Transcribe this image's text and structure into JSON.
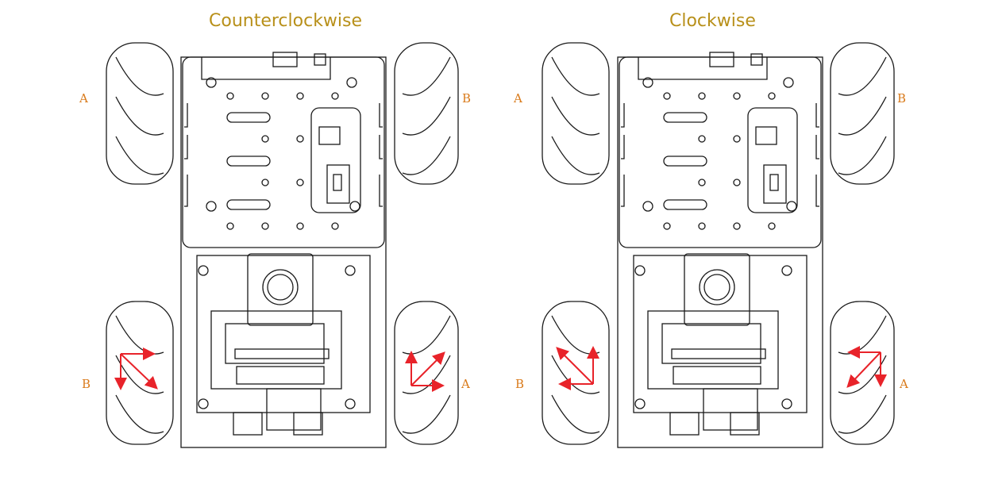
{
  "panels": [
    {
      "title": "Counterclockwise",
      "wheel_labels": {
        "front_left": "A",
        "front_right": "B",
        "rear_left": "B",
        "rear_right": "A"
      }
    },
    {
      "title": "Clockwise",
      "wheel_labels": {
        "front_left": "A",
        "front_right": "B",
        "rear_left": "B",
        "rear_right": "A"
      }
    }
  ],
  "colors": {
    "title": "#b8901a",
    "wheel_label": "#d97a1a",
    "arrow": "#e8232a",
    "line": "#1a1a1a"
  }
}
